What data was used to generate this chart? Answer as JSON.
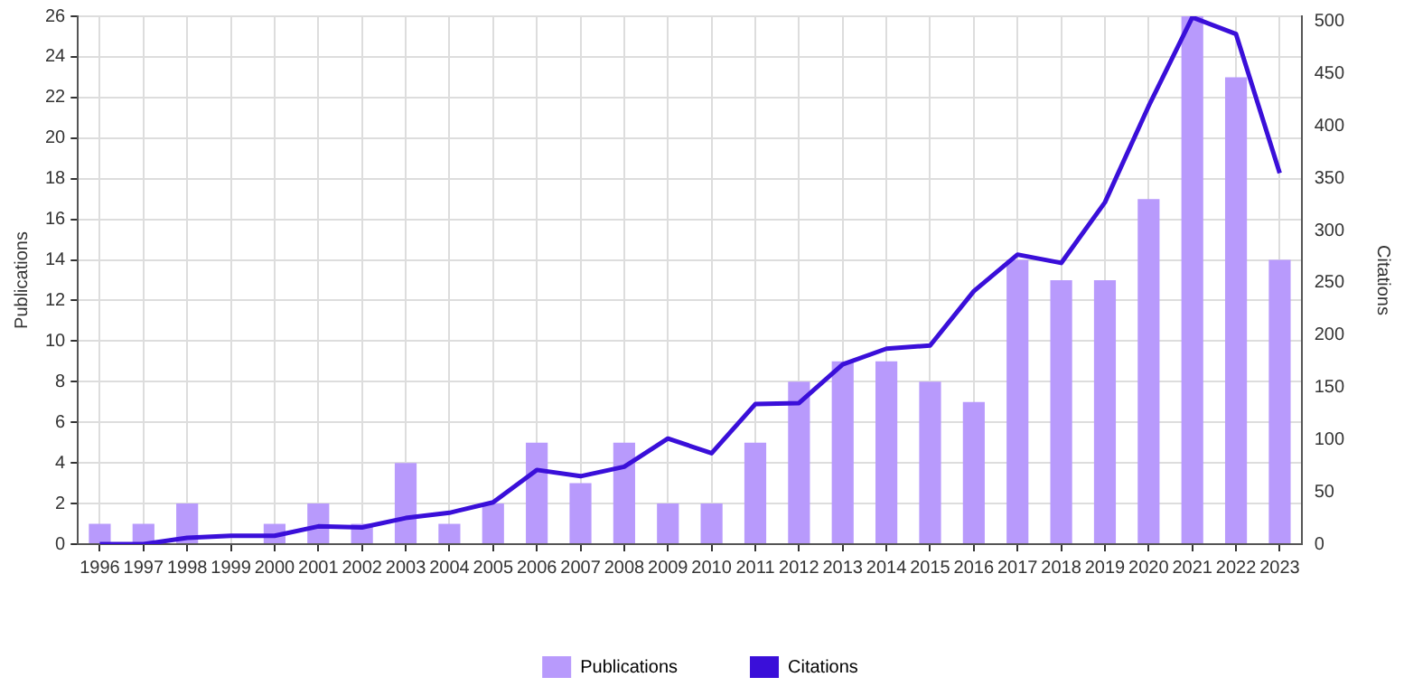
{
  "chart_data": {
    "type": "bar",
    "categories": [
      "1996",
      "1997",
      "1998",
      "1999",
      "2000",
      "2001",
      "2002",
      "2003",
      "2004",
      "2005",
      "2006",
      "2007",
      "2008",
      "2009",
      "2010",
      "2011",
      "2012",
      "2013",
      "2014",
      "2015",
      "2016",
      "2017",
      "2018",
      "2019",
      "2020",
      "2021",
      "2022",
      "2023"
    ],
    "series": [
      {
        "name": "Publications",
        "color": "#b89afc",
        "values": [
          1,
          1,
          2,
          0,
          1,
          2,
          1,
          4,
          1,
          2,
          5,
          3,
          5,
          2,
          2,
          5,
          8,
          9,
          9,
          8,
          7,
          14,
          13,
          13,
          17,
          26,
          23,
          14
        ]
      },
      {
        "name": "Citations",
        "type": "line",
        "axis": "y2",
        "color": "#3a0fd9",
        "values": [
          0,
          0,
          6,
          8,
          8,
          17,
          16,
          25,
          30,
          40,
          71,
          65,
          74,
          101,
          87,
          134,
          135,
          172,
          187,
          190,
          242,
          277,
          269,
          327,
          419,
          504,
          488,
          355
        ]
      }
    ],
    "ylabel": "Publications",
    "y2label": "Citations",
    "ylim": [
      0,
      26
    ],
    "yticks": [
      0,
      2,
      4,
      6,
      8,
      10,
      12,
      14,
      16,
      18,
      20,
      22,
      24,
      26
    ],
    "y2lim": [
      0,
      505
    ],
    "y2ticks": [
      0,
      50,
      100,
      150,
      200,
      250,
      300,
      350,
      400,
      450,
      500
    ],
    "grid": true,
    "legend": "bottom",
    "marker": "none",
    "line_style": "solid"
  }
}
